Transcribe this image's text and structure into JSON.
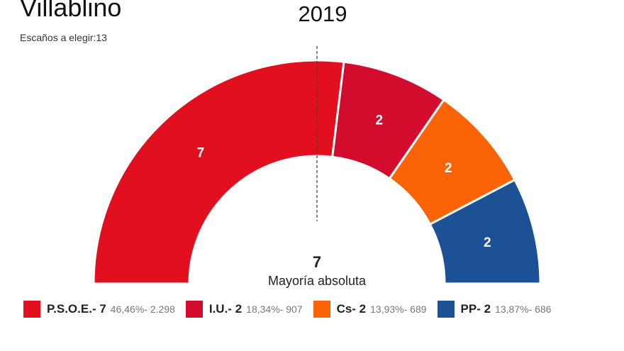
{
  "header": {
    "title": "Villablino",
    "subtitle": "Escaños a elegir:13",
    "year": "2019"
  },
  "chart_data": {
    "type": "parliament-semicircle",
    "title": "2019",
    "total_seats": 13,
    "majority": {
      "value": "7",
      "label": "Mayoría absoluta"
    },
    "series": [
      {
        "name": "P.S.O.E.",
        "seats": 7,
        "seat_label": "7",
        "legend": "P.S.O.E.- 7",
        "detail": "46,46%- 2.298",
        "color": "#e2101f"
      },
      {
        "name": "I.U.",
        "seats": 2,
        "seat_label": "2",
        "legend": "I.U.- 2",
        "detail": "18,34%- 907",
        "color": "#d30b2c"
      },
      {
        "name": "Cs",
        "seats": 2,
        "seat_label": "2",
        "legend": "Cs- 2",
        "detail": "13,93%- 689",
        "color": "#fb6306"
      },
      {
        "name": "PP",
        "seats": 2,
        "seat_label": "2",
        "legend": "PP- 2",
        "detail": "13,87%- 686",
        "color": "#1d5196"
      }
    ]
  }
}
